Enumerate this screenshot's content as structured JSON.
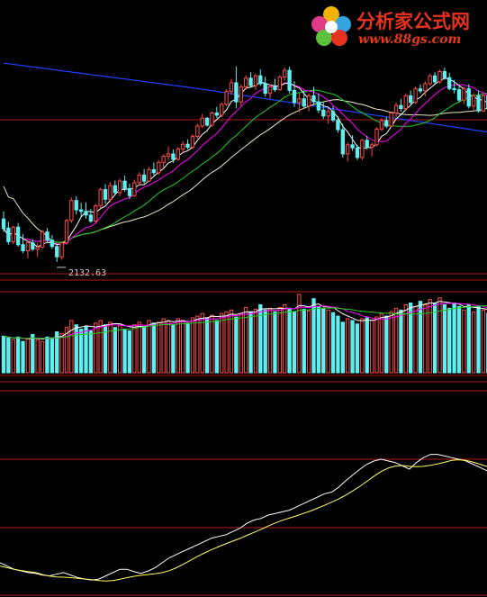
{
  "watermark": {
    "name": "分析家公式网",
    "url": "www.88gs.com",
    "logo_colors": [
      "#e23a8a",
      "#f0b400",
      "#33a4e0",
      "#5cc13a",
      "#e8321e"
    ]
  },
  "colors": {
    "background": "#000000",
    "up_candle": "#ff4a4a",
    "down_candle": "#5ef0f0",
    "divider": "#b01818",
    "ma_fast": "#ffffff",
    "ma_mid": "#ff00ff",
    "ma_slow": "#22cc22",
    "ma_long": "#2040ff",
    "ma_very_long": "#e8e8c0",
    "osc_main": "#ffffff",
    "osc_signal": "#ffff66"
  },
  "chart_data": [
    {
      "type": "candlestick",
      "panel": "price",
      "low_annotation": "2132.63",
      "ohlc": [
        [
          2275,
          2300,
          2232,
          2243
        ],
        [
          2245,
          2266,
          2190,
          2200
        ],
        [
          2200,
          2252,
          2192,
          2248
        ],
        [
          2248,
          2262,
          2183,
          2190
        ],
        [
          2190,
          2225,
          2162,
          2170
        ],
        [
          2170,
          2202,
          2145,
          2196
        ],
        [
          2196,
          2208,
          2170,
          2175
        ],
        [
          2175,
          2195,
          2150,
          2182
        ],
        [
          2182,
          2238,
          2178,
          2232
        ],
        [
          2232,
          2245,
          2196,
          2205
        ],
        [
          2205,
          2222,
          2176,
          2184
        ],
        [
          2184,
          2190,
          2133,
          2150
        ],
        [
          2150,
          2200,
          2140,
          2196
        ],
        [
          2196,
          2275,
          2190,
          2270
        ],
        [
          2270,
          2346,
          2262,
          2336
        ],
        [
          2336,
          2350,
          2290,
          2305
        ],
        [
          2305,
          2328,
          2280,
          2300
        ],
        [
          2300,
          2330,
          2276,
          2288
        ],
        [
          2288,
          2308,
          2262,
          2268
        ],
        [
          2268,
          2325,
          2262,
          2318
        ],
        [
          2318,
          2378,
          2310,
          2372
        ],
        [
          2372,
          2390,
          2325,
          2340
        ],
        [
          2340,
          2398,
          2330,
          2385
        ],
        [
          2385,
          2402,
          2355,
          2362
        ],
        [
          2362,
          2408,
          2350,
          2400
        ],
        [
          2400,
          2418,
          2365,
          2375
        ],
        [
          2375,
          2392,
          2340,
          2352
        ],
        [
          2352,
          2405,
          2348,
          2395
        ],
        [
          2395,
          2430,
          2388,
          2420
        ],
        [
          2420,
          2440,
          2392,
          2400
        ],
        [
          2400,
          2446,
          2398,
          2438
        ],
        [
          2438,
          2462,
          2420,
          2428
        ],
        [
          2428,
          2470,
          2420,
          2462
        ],
        [
          2462,
          2488,
          2444,
          2482
        ],
        [
          2482,
          2515,
          2470,
          2490
        ],
        [
          2490,
          2505,
          2460,
          2472
        ],
        [
          2472,
          2512,
          2468,
          2506
        ],
        [
          2506,
          2532,
          2495,
          2522
        ],
        [
          2522,
          2538,
          2505,
          2512
        ],
        [
          2512,
          2555,
          2508,
          2548
        ],
        [
          2548,
          2590,
          2540,
          2582
        ],
        [
          2582,
          2622,
          2575,
          2608
        ],
        [
          2608,
          2612,
          2580,
          2585
        ],
        [
          2585,
          2630,
          2580,
          2625
        ],
        [
          2625,
          2645,
          2608,
          2618
        ],
        [
          2618,
          2660,
          2612,
          2654
        ],
        [
          2654,
          2705,
          2648,
          2696
        ],
        [
          2696,
          2738,
          2685,
          2725
        ],
        [
          2725,
          2778,
          2640,
          2662
        ],
        [
          2662,
          2720,
          2650,
          2712
        ],
        [
          2712,
          2750,
          2702,
          2740
        ],
        [
          2740,
          2760,
          2708,
          2716
        ],
        [
          2716,
          2755,
          2702,
          2748
        ],
        [
          2748,
          2770,
          2715,
          2722
        ],
        [
          2722,
          2745,
          2680,
          2690
        ],
        [
          2690,
          2720,
          2672,
          2712
        ],
        [
          2712,
          2738,
          2695,
          2702
        ],
        [
          2702,
          2750,
          2698,
          2744
        ],
        [
          2744,
          2776,
          2732,
          2766
        ],
        [
          2766,
          2778,
          2690,
          2700
        ],
        [
          2700,
          2730,
          2645,
          2660
        ],
        [
          2660,
          2690,
          2628,
          2672
        ],
        [
          2672,
          2700,
          2640,
          2648
        ],
        [
          2648,
          2690,
          2630,
          2682
        ],
        [
          2682,
          2712,
          2655,
          2662
        ],
        [
          2662,
          2690,
          2625,
          2635
        ],
        [
          2635,
          2660,
          2605,
          2615
        ],
        [
          2615,
          2640,
          2590,
          2630
        ],
        [
          2630,
          2648,
          2595,
          2602
        ],
        [
          2602,
          2615,
          2560,
          2570
        ],
        [
          2570,
          2590,
          2478,
          2490
        ],
        [
          2490,
          2528,
          2465,
          2520
        ],
        [
          2520,
          2552,
          2500,
          2510
        ],
        [
          2510,
          2520,
          2470,
          2478
        ],
        [
          2478,
          2540,
          2470,
          2535
        ],
        [
          2535,
          2550,
          2505,
          2512
        ],
        [
          2512,
          2528,
          2482,
          2520
        ],
        [
          2520,
          2578,
          2515,
          2572
        ],
        [
          2572,
          2608,
          2565,
          2600
        ],
        [
          2600,
          2612,
          2575,
          2582
        ],
        [
          2582,
          2630,
          2578,
          2625
        ],
        [
          2625,
          2660,
          2612,
          2650
        ],
        [
          2650,
          2672,
          2630,
          2640
        ],
        [
          2640,
          2690,
          2632,
          2682
        ],
        [
          2682,
          2700,
          2652,
          2660
        ],
        [
          2660,
          2712,
          2655,
          2705
        ],
        [
          2705,
          2720,
          2690,
          2698
        ],
        [
          2698,
          2730,
          2680,
          2722
        ],
        [
          2722,
          2755,
          2715,
          2748
        ],
        [
          2748,
          2760,
          2720,
          2728
        ],
        [
          2728,
          2768,
          2722,
          2762
        ],
        [
          2762,
          2775,
          2735,
          2742
        ],
        [
          2742,
          2758,
          2700,
          2706
        ],
        [
          2706,
          2735,
          2690,
          2702
        ],
        [
          2702,
          2720,
          2660,
          2668
        ],
        [
          2668,
          2712,
          2655,
          2705
        ],
        [
          2705,
          2720,
          2640,
          2648
        ],
        [
          2648,
          2690,
          2635,
          2682
        ],
        [
          2682,
          2700,
          2626,
          2632
        ],
        [
          2632,
          2688,
          2628,
          2682
        ],
        [
          2682,
          2695,
          2630,
          2640
        ]
      ]
    },
    {
      "type": "bar",
      "panel": "volume",
      "values": [
        42,
        40,
        38,
        41,
        36,
        39,
        44,
        38,
        36,
        41,
        40,
        47,
        45,
        52,
        60,
        55,
        50,
        53,
        48,
        57,
        60,
        55,
        58,
        52,
        56,
        50,
        48,
        55,
        58,
        53,
        60,
        57,
        58,
        62,
        60,
        55,
        62,
        60,
        57,
        63,
        65,
        68,
        63,
        66,
        60,
        68,
        70,
        72,
        64,
        68,
        75,
        70,
        73,
        78,
        72,
        74,
        70,
        75,
        78,
        73,
        70,
        90,
        73,
        71,
        85,
        76,
        74,
        72,
        69,
        65,
        58,
        62,
        60,
        56,
        62,
        63,
        60,
        64,
        68,
        65,
        70,
        74,
        72,
        78,
        80,
        76,
        82,
        78,
        84,
        80,
        86,
        78,
        74,
        80,
        76,
        72,
        78,
        70,
        76,
        72,
        68
      ]
    },
    {
      "type": "line",
      "panel": "oscillator",
      "series": [
        {
          "values": [
            -62,
            -66,
            -70,
            -72,
            -74,
            -75,
            -77,
            -78,
            -76,
            -74,
            -77,
            -80,
            -82,
            -83,
            -82,
            -78,
            -74,
            -70,
            -70,
            -73,
            -75,
            -72,
            -68,
            -62,
            -56,
            -52,
            -48,
            -44,
            -40,
            -36,
            -32,
            -30,
            -28,
            -24,
            -20,
            -14,
            -10,
            -8,
            -4,
            -2,
            0,
            2,
            6,
            10,
            14,
            18,
            22,
            24,
            30,
            38,
            45,
            52,
            58,
            62,
            64,
            62,
            60,
            56,
            52,
            60,
            66,
            70,
            70,
            68,
            66,
            64,
            62,
            58,
            54,
            50
          ]
        }
      ]
    }
  ]
}
